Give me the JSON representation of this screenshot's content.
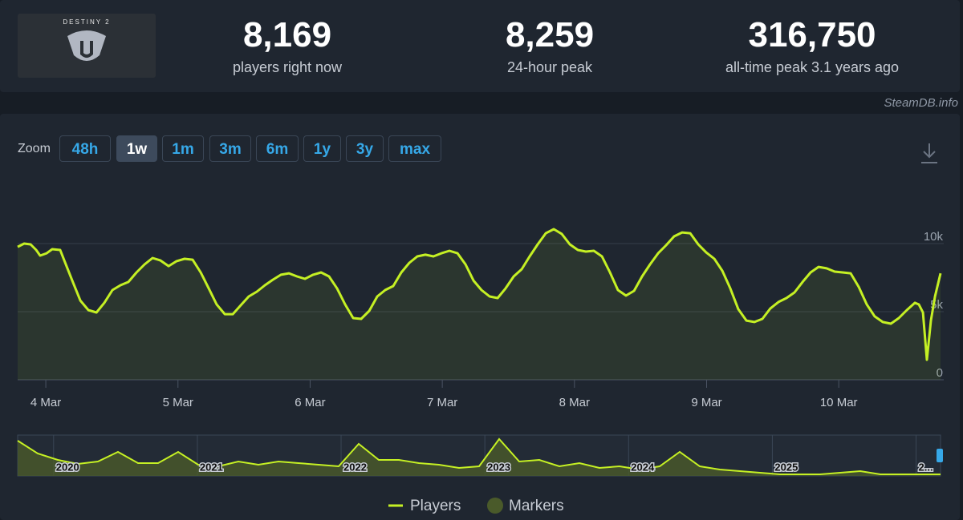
{
  "header": {
    "logo_text": "DESTINY 2",
    "stats": [
      {
        "value": "8,169",
        "label": "players right now"
      },
      {
        "value": "8,259",
        "label": "24-hour peak"
      },
      {
        "value": "316,750",
        "label": "all-time peak 3.1 years ago"
      }
    ],
    "source": "SteamDB.info"
  },
  "zoom": {
    "label": "Zoom",
    "buttons": [
      "48h",
      "1w",
      "1m",
      "3m",
      "6m",
      "1y",
      "3y",
      "max"
    ],
    "active_index": 1
  },
  "chart_data": {
    "type": "line",
    "x": [
      3.787,
      3.836,
      3.885,
      3.927,
      3.957,
      4.006,
      4.049,
      4.109,
      4.14,
      4.2,
      4.261,
      4.322,
      4.383,
      4.443,
      4.504,
      4.565,
      4.625,
      4.686,
      4.747,
      4.808,
      4.868,
      4.929,
      4.99,
      5.05,
      5.111,
      5.172,
      5.233,
      5.293,
      5.354,
      5.415,
      5.475,
      5.536,
      5.597,
      5.658,
      5.718,
      5.779,
      5.84,
      5.901,
      5.961,
      6.022,
      6.083,
      6.143,
      6.204,
      6.265,
      6.326,
      6.386,
      6.447,
      6.508,
      6.568,
      6.629,
      6.69,
      6.751,
      6.811,
      6.872,
      6.933,
      6.994,
      7.054,
      7.115,
      7.176,
      7.236,
      7.297,
      7.358,
      7.419,
      7.479,
      7.54,
      7.601,
      7.661,
      7.722,
      7.783,
      7.844,
      7.904,
      7.965,
      8.026,
      8.086,
      8.147,
      8.208,
      8.269,
      8.329,
      8.39,
      8.451,
      8.512,
      8.572,
      8.633,
      8.694,
      8.754,
      8.815,
      8.876,
      8.937,
      8.997,
      9.058,
      9.119,
      9.179,
      9.24,
      9.301,
      9.362,
      9.422,
      9.483,
      9.544,
      9.604,
      9.665,
      9.726,
      9.787,
      9.847,
      9.908,
      9.969,
      10.029,
      10.09,
      10.151,
      10.212,
      10.272,
      10.333,
      10.394,
      10.454,
      10.515,
      10.576,
      10.606,
      10.637,
      10.667,
      10.697,
      10.728,
      10.77
    ],
    "series": [
      {
        "name": "Players",
        "color": "#c5f024",
        "values": [
          9760,
          10000,
          9940,
          9530,
          9120,
          9290,
          9590,
          9530,
          8760,
          7290,
          5820,
          5120,
          4940,
          5650,
          6590,
          6940,
          7180,
          7880,
          8470,
          8940,
          8760,
          8350,
          8710,
          8880,
          8820,
          7880,
          6710,
          5530,
          4820,
          4820,
          5470,
          6120,
          6470,
          6940,
          7350,
          7710,
          7820,
          7590,
          7410,
          7710,
          7880,
          7590,
          6710,
          5530,
          4530,
          4470,
          5060,
          6120,
          6590,
          6880,
          7880,
          8590,
          9060,
          9180,
          9060,
          9290,
          9470,
          9290,
          8470,
          7290,
          6590,
          6120,
          6000,
          6710,
          7590,
          8120,
          9060,
          9940,
          10760,
          11060,
          10710,
          9940,
          9530,
          9410,
          9470,
          9060,
          7880,
          6590,
          6180,
          6530,
          7590,
          8470,
          9290,
          9880,
          10530,
          10820,
          10760,
          9940,
          9350,
          8880,
          8000,
          6710,
          5180,
          4350,
          4240,
          4470,
          5240,
          5710,
          6000,
          6410,
          7180,
          7880,
          8290,
          8180,
          7940,
          7880,
          7820,
          6820,
          5530,
          4650,
          4240,
          4120,
          4530,
          5120,
          5650,
          5530,
          4940,
          1470,
          4350,
          6120,
          7820
        ]
      }
    ],
    "xlim": [
      3.787,
      10.77
    ],
    "xticks": [
      {
        "value": 4,
        "label": "4 Mar"
      },
      {
        "value": 5,
        "label": "5 Mar"
      },
      {
        "value": 6,
        "label": "6 Mar"
      },
      {
        "value": 7,
        "label": "7 Mar"
      },
      {
        "value": 8,
        "label": "8 Mar"
      },
      {
        "value": 9,
        "label": "9 Mar"
      },
      {
        "value": 10,
        "label": "10 Mar"
      }
    ],
    "ylim": [
      0,
      15000
    ],
    "yticks": [
      0,
      {
        "value": 5000,
        "label": "5k"
      },
      {
        "value": 10000,
        "label": "10k"
      }
    ],
    "grid": true,
    "markers": {
      "name": "Markers",
      "color": "#4a5a2a"
    },
    "navigator": {
      "xlim": [
        2019.75,
        2026.17
      ],
      "xticks": [
        2020,
        2021,
        2022,
        2023,
        2024,
        2025,
        {
          "value": 2026,
          "label": "2..."
        }
      ],
      "values": [
        44,
        28,
        20,
        15,
        18,
        30,
        16,
        16,
        30,
        14,
        12,
        18,
        14,
        18,
        16,
        14,
        12,
        40,
        20,
        20,
        16,
        14,
        10,
        12,
        46,
        18,
        20,
        12,
        16,
        10,
        12,
        8,
        12,
        30,
        12,
        8,
        6,
        4,
        2,
        2,
        2,
        4,
        6,
        2,
        2,
        2,
        2
      ]
    }
  }
}
